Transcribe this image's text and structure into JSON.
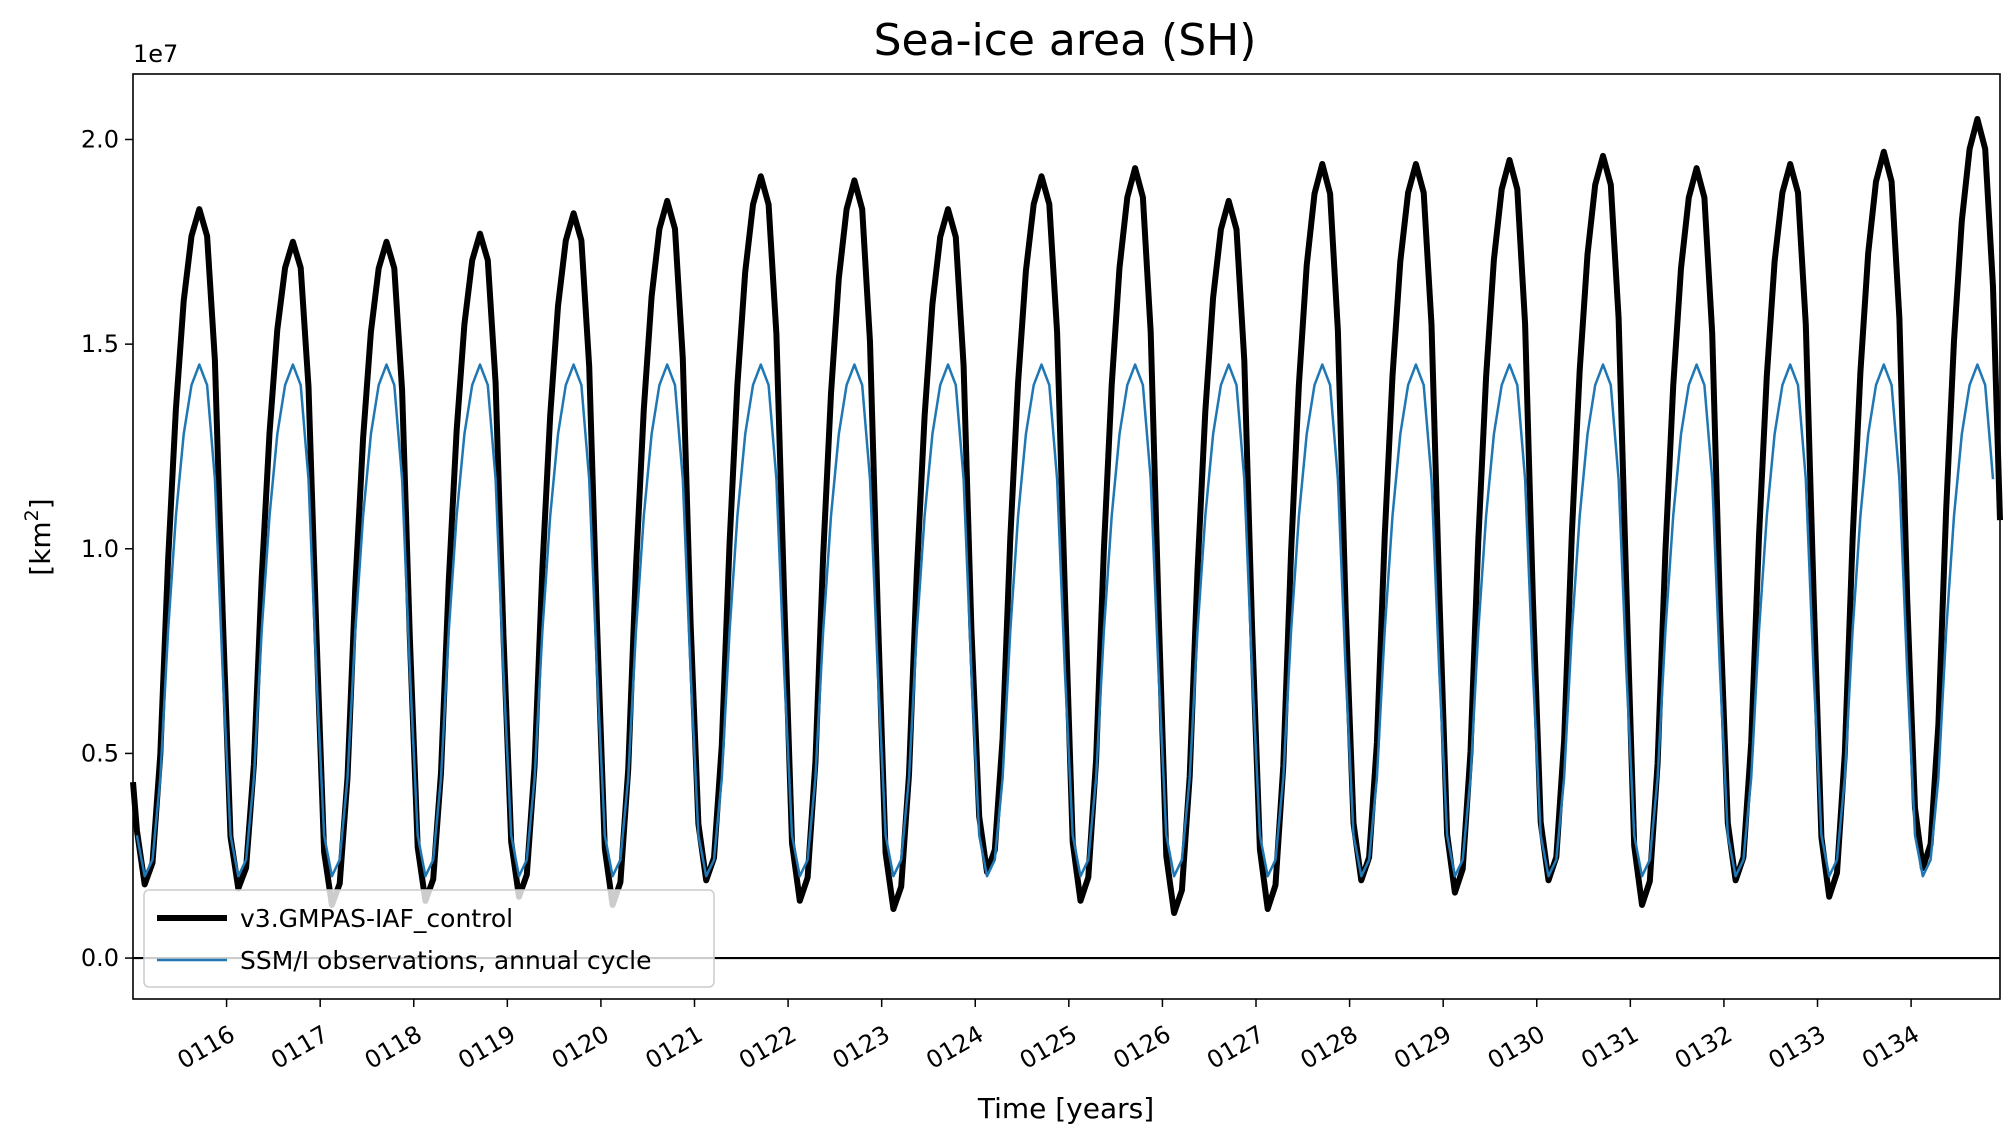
{
  "chart_data": {
    "type": "line",
    "title": "Sea-ice area (SH)",
    "xlabel": "Time [years]",
    "ylabel_prefix": "[km",
    "ylabel_sup": "2",
    "ylabel_suffix": "]",
    "y_offset_label": "1e7",
    "y_scale": 10000000,
    "xlim": [
      115.0,
      134.95
    ],
    "ylim": [
      -1000000,
      21600000
    ],
    "x_tick_labels": [
      "0116",
      "0117",
      "0118",
      "0119",
      "0120",
      "0121",
      "0122",
      "0123",
      "0124",
      "0125",
      "0126",
      "0127",
      "0128",
      "0129",
      "0130",
      "0131",
      "0132",
      "0133",
      "0134"
    ],
    "y_tick_labels": [
      "0.0",
      "0.5",
      "1.0",
      "1.5",
      "2.0"
    ],
    "y_ticks": [
      0,
      5000000,
      10000000,
      15000000,
      20000000
    ],
    "legend_position": "lower-left",
    "zero_line": true,
    "series": [
      {
        "name": "v3.GMPAS-IAF_control",
        "color": "#000000",
        "annual_max": [
          18300000,
          17500000,
          17500000,
          17700000,
          18200000,
          18500000,
          19100000,
          19000000,
          18300000,
          19100000,
          19300000,
          18500000,
          19400000,
          19400000,
          19500000,
          19600000,
          19300000,
          19400000,
          19700000,
          20500000
        ],
        "annual_min": [
          1800000,
          1700000,
          1300000,
          1400000,
          1500000,
          1300000,
          1900000,
          1400000,
          1200000,
          2100000,
          1400000,
          1100000,
          1200000,
          1900000,
          1600000,
          1900000,
          1300000,
          1900000,
          1500000,
          2200000
        ],
        "start_value": 4300000,
        "end_value": 10700000
      },
      {
        "name": "SSM/I observations, annual cycle",
        "color": "#1f77b4",
        "monthly_cycle": [
          3000000,
          2000000,
          2400000,
          4400000,
          8000000,
          10800000,
          12800000,
          14000000,
          14500000,
          14000000,
          11700000,
          7000000
        ]
      }
    ]
  }
}
